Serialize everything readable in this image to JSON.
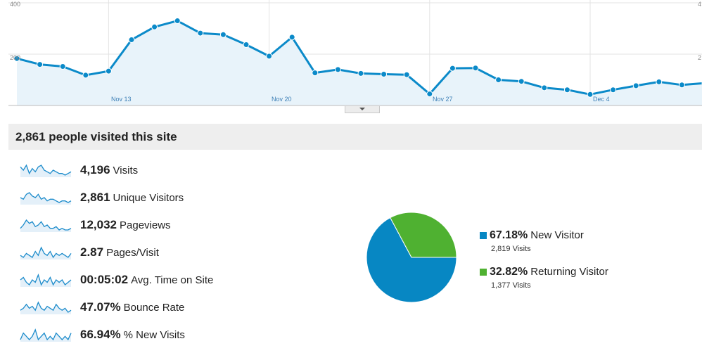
{
  "timeline": {
    "y_axis_labels": [
      "400",
      "200"
    ],
    "right_axis_labels": [
      "4",
      "2"
    ],
    "x_axis_labels": [
      "Nov 13",
      "Nov 20",
      "Nov 27",
      "Dec 4"
    ],
    "colors": {
      "line": "#0b8ac9",
      "fill": "#e8f3fa",
      "grid": "#e3e3e3"
    }
  },
  "chart_data": {
    "type": "area",
    "title": "",
    "xlabel": "",
    "ylabel": "",
    "ylim": [
      0,
      400
    ],
    "x": [
      "Nov 9",
      "Nov 10",
      "Nov 11",
      "Nov 12",
      "Nov 13",
      "Nov 14",
      "Nov 15",
      "Nov 16",
      "Nov 17",
      "Nov 18",
      "Nov 19",
      "Nov 20",
      "Nov 21",
      "Nov 22",
      "Nov 23",
      "Nov 24",
      "Nov 25",
      "Nov 26",
      "Nov 27",
      "Nov 28",
      "Nov 29",
      "Nov 30",
      "Dec 1",
      "Dec 2",
      "Dec 3",
      "Dec 4",
      "Dec 5",
      "Dec 6",
      "Dec 7",
      "Dec 8",
      "Dec 9"
    ],
    "x_ticks": [
      "Nov 13",
      "Nov 20",
      "Nov 27",
      "Dec 4"
    ],
    "y_ticks": [
      200,
      400
    ],
    "series": [
      {
        "values": [
          183,
          160,
          152,
          118,
          134,
          256,
          306,
          330,
          282,
          276,
          237,
          192,
          266,
          127,
          140,
          125,
          122,
          120,
          45,
          145,
          146,
          100,
          94,
          69,
          61,
          43,
          61,
          77,
          92,
          80,
          87
        ]
      }
    ]
  },
  "headline": {
    "text": "2,861 people visited this site"
  },
  "metrics": [
    {
      "value": "4,196",
      "label": "Visits",
      "spark": [
        8,
        6,
        9,
        4,
        7,
        5,
        8,
        9,
        6,
        5,
        4,
        6,
        5,
        4,
        4,
        3,
        4,
        5
      ]
    },
    {
      "value": "2,861",
      "label": "Unique Visitors",
      "spark": [
        6,
        5,
        8,
        9,
        7,
        6,
        8,
        5,
        6,
        4,
        5,
        5,
        4,
        3,
        4,
        4,
        3,
        4
      ]
    },
    {
      "value": "12,032",
      "label": "Pageviews",
      "spark": [
        4,
        6,
        9,
        7,
        8,
        5,
        6,
        8,
        5,
        6,
        4,
        4,
        5,
        3,
        4,
        3,
        3,
        4
      ]
    },
    {
      "value": "2.87",
      "label": "Pages/Visit",
      "spark": [
        5,
        4,
        6,
        5,
        4,
        7,
        5,
        9,
        6,
        5,
        7,
        4,
        6,
        5,
        6,
        5,
        4,
        6
      ]
    },
    {
      "value": "00:05:02",
      "label": "Avg. Time on Site",
      "spark": [
        6,
        7,
        5,
        4,
        6,
        5,
        8,
        4,
        6,
        5,
        7,
        4,
        6,
        5,
        6,
        4,
        5,
        6
      ]
    },
    {
      "value": "47.07%",
      "label": "Bounce Rate",
      "spark": [
        5,
        6,
        8,
        6,
        7,
        5,
        9,
        6,
        5,
        7,
        6,
        5,
        8,
        6,
        5,
        6,
        4,
        5
      ]
    },
    {
      "value": "66.94%",
      "label": "% New Visits",
      "spark": [
        5,
        7,
        6,
        5,
        6,
        8,
        5,
        6,
        7,
        5,
        6,
        5,
        7,
        6,
        5,
        6,
        5,
        7
      ]
    }
  ],
  "visitor_types": [
    {
      "pct_label": "67.18%",
      "name": "New Visitor",
      "sub": "2,819 Visits",
      "fraction": 0.6718,
      "color": "#0787c3"
    },
    {
      "pct_label": "32.82%",
      "name": "Returning Visitor",
      "sub": "1,377 Visits",
      "fraction": 0.3282,
      "color": "#4fb131"
    }
  ]
}
